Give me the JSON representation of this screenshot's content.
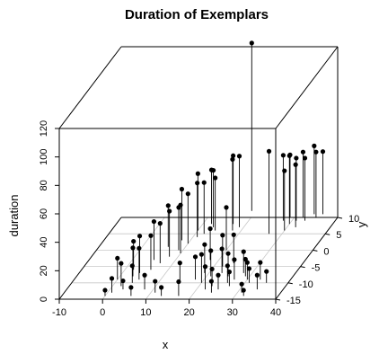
{
  "chart_data": {
    "type": "scatter3d",
    "title": "Duration of Exemplars",
    "xlabel": "x",
    "ylabel": "y",
    "zlabel": "duration",
    "xlim": [
      -10,
      40
    ],
    "ylim": [
      -15,
      10
    ],
    "zlim": [
      0,
      120
    ],
    "x_ticks": [
      "-10",
      "0",
      "10",
      "20",
      "30",
      "40"
    ],
    "y_ticks": [
      "-15",
      "-10",
      "-5",
      "0",
      "5",
      "10"
    ],
    "z_ticks": [
      "0",
      "20",
      "40",
      "60",
      "80",
      "100",
      "120"
    ],
    "box": true,
    "grid": "floor",
    "drop_lines": true,
    "points": [
      {
        "x": 0,
        "y": -14,
        "z": 4
      },
      {
        "x": 1,
        "y": -13,
        "z": 10
      },
      {
        "x": 3,
        "y": -12,
        "z": 6
      },
      {
        "x": 6,
        "y": -14,
        "z": 6
      },
      {
        "x": 2,
        "y": -11,
        "z": 16
      },
      {
        "x": 4,
        "y": -10,
        "z": 12
      },
      {
        "x": 0,
        "y": -9,
        "z": 15
      },
      {
        "x": 3,
        "y": -8,
        "z": 20
      },
      {
        "x": 5,
        "y": -9,
        "z": 22
      },
      {
        "x": 4,
        "y": -7,
        "z": 26
      },
      {
        "x": 6,
        "y": -6,
        "z": 24
      },
      {
        "x": 2,
        "y": -6,
        "z": 20
      },
      {
        "x": 7,
        "y": -4,
        "z": 28
      },
      {
        "x": 5,
        "y": -3,
        "z": 27
      },
      {
        "x": 8,
        "y": -2,
        "z": 32
      },
      {
        "x": 9,
        "y": 0,
        "z": 30
      },
      {
        "x": 6,
        "y": 1,
        "z": 29
      },
      {
        "x": 10,
        "y": 2,
        "z": 35
      },
      {
        "x": 8,
        "y": 3,
        "z": 36
      },
      {
        "x": 11,
        "y": 4,
        "z": 38
      },
      {
        "x": 12,
        "y": 5,
        "z": 36
      },
      {
        "x": 13,
        "y": 7,
        "z": 40
      },
      {
        "x": 10,
        "y": 6,
        "z": 40
      },
      {
        "x": 12,
        "y": 8,
        "z": 38
      },
      {
        "x": 14,
        "y": 6,
        "z": 37
      },
      {
        "x": 10,
        "y": -1,
        "z": 34
      },
      {
        "x": 11,
        "y": -13,
        "z": 8
      },
      {
        "x": 13,
        "y": -14,
        "z": 6
      },
      {
        "x": 17,
        "y": -14,
        "z": 10
      },
      {
        "x": 8,
        "y": -12,
        "z": 10
      },
      {
        "x": 15,
        "y": -10,
        "z": 14
      },
      {
        "x": 18,
        "y": -9,
        "z": 16
      },
      {
        "x": 20,
        "y": -10,
        "z": 20
      },
      {
        "x": 22,
        "y": -12,
        "z": 16
      },
      {
        "x": 23,
        "y": -11,
        "z": 12
      },
      {
        "x": 24,
        "y": -13,
        "z": 8
      },
      {
        "x": 25,
        "y": -12,
        "z": 10
      },
      {
        "x": 26,
        "y": -10,
        "z": 12
      },
      {
        "x": 27,
        "y": -11,
        "z": 10
      },
      {
        "x": 19,
        "y": -7,
        "z": 20
      },
      {
        "x": 21,
        "y": -8,
        "z": 18
      },
      {
        "x": 23,
        "y": -7,
        "z": 17
      },
      {
        "x": 25,
        "y": -8,
        "z": 16
      },
      {
        "x": 27,
        "y": -9,
        "z": 14
      },
      {
        "x": 28,
        "y": -7,
        "z": 15
      },
      {
        "x": 29,
        "y": -8,
        "z": 12
      },
      {
        "x": 30,
        "y": -9,
        "z": 12
      },
      {
        "x": 31,
        "y": -10,
        "z": 10
      },
      {
        "x": 33,
        "y": -9,
        "z": 12
      },
      {
        "x": 34,
        "y": -12,
        "z": 10
      },
      {
        "x": 35,
        "y": -10,
        "z": 8
      },
      {
        "x": 32,
        "y": -14,
        "z": 4
      },
      {
        "x": 31,
        "y": -13,
        "z": 6
      },
      {
        "x": 22,
        "y": -5,
        "z": 22
      },
      {
        "x": 24,
        "y": -4,
        "z": 20
      },
      {
        "x": 18,
        "y": -3,
        "z": 22
      },
      {
        "x": 20,
        "y": 0,
        "z": 30
      },
      {
        "x": 18,
        "y": 6,
        "z": 50
      },
      {
        "x": 19,
        "y": 7,
        "z": 50
      },
      {
        "x": 17,
        "y": 8,
        "z": 48
      },
      {
        "x": 19,
        "y": 12,
        "z": 118
      },
      {
        "x": 27,
        "y": 5,
        "z": 58
      },
      {
        "x": 28,
        "y": 9,
        "z": 46
      },
      {
        "x": 29,
        "y": 10,
        "z": 44
      },
      {
        "x": 30,
        "y": 8,
        "z": 48
      },
      {
        "x": 31,
        "y": 9,
        "z": 44
      },
      {
        "x": 32,
        "y": 10,
        "z": 46
      },
      {
        "x": 33,
        "y": 9,
        "z": 44
      },
      {
        "x": 34,
        "y": 11,
        "z": 48
      },
      {
        "x": 35,
        "y": 10,
        "z": 46
      },
      {
        "x": 36,
        "y": 11,
        "z": 44
      },
      {
        "x": 30,
        "y": 6,
        "z": 42
      },
      {
        "x": 32,
        "y": 7,
        "z": 44
      }
    ]
  }
}
